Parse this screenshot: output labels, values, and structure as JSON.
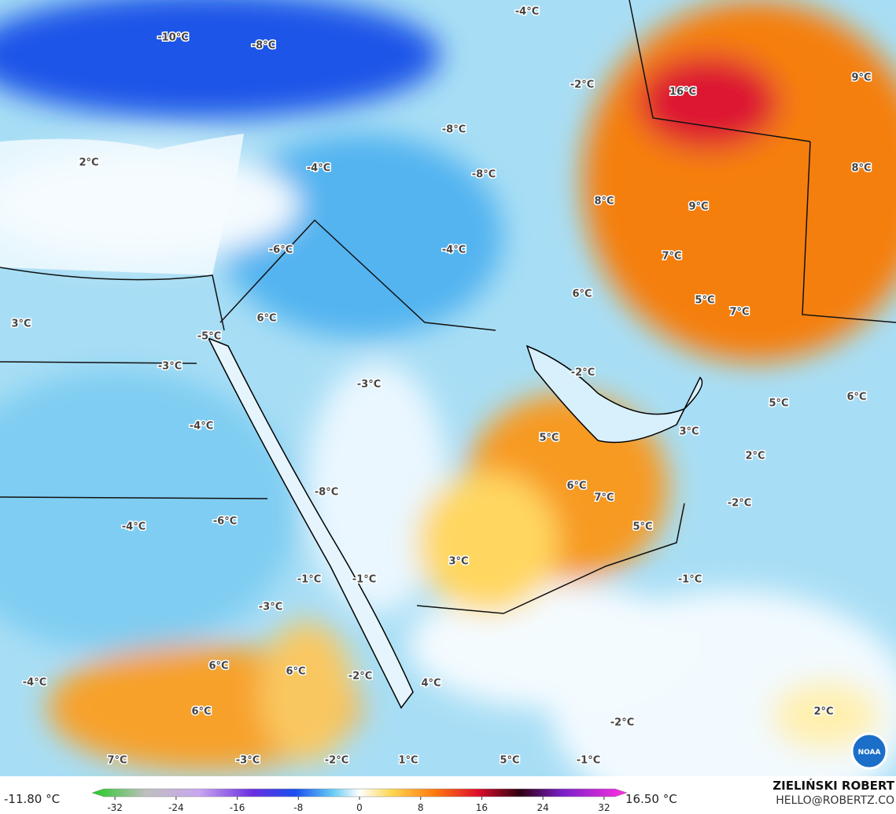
{
  "map": {
    "labels": [
      "-10°C",
      "-8°C",
      "-4°C",
      "-2°C",
      "16°C",
      "9°C",
      "2°C",
      "-4°C",
      "-8°C",
      "-8°C",
      "8°C",
      "8°C",
      "9°C",
      "-6°C",
      "-4°C",
      "7°C",
      "6°C",
      "5°C",
      "7°C",
      "3°C",
      "6°C",
      "-5°C",
      "-3°C",
      "-2°C",
      "-3°C",
      "5°C",
      "6°C",
      "-4°C",
      "5°C",
      "3°C",
      "2°C",
      "-8°C",
      "6°C",
      "7°C",
      "-2°C",
      "-4°C",
      "-6°C",
      "5°C",
      "3°C",
      "-1°C",
      "-1°C",
      "-1°C",
      "-3°C",
      "6°C",
      "6°C",
      "-2°C",
      "-4°C",
      "4°C",
      "2°C",
      "6°C",
      "-2°C",
      "7°C",
      "-3°C",
      "-2°C",
      "1°C",
      "5°C",
      "-1°C"
    ],
    "logo": "NOAA"
  },
  "colorbar": {
    "lim": [
      -35,
      35
    ],
    "ticks": [
      -32,
      -24,
      -16,
      -8,
      0,
      8,
      16,
      24,
      32
    ],
    "min_label": "-11.80 °C",
    "max_label": "16.50 °C"
  },
  "credits": {
    "name": "ZIELIŃSKI ROBERT",
    "email": "HELLO@ROBERTZ.CO"
  }
}
